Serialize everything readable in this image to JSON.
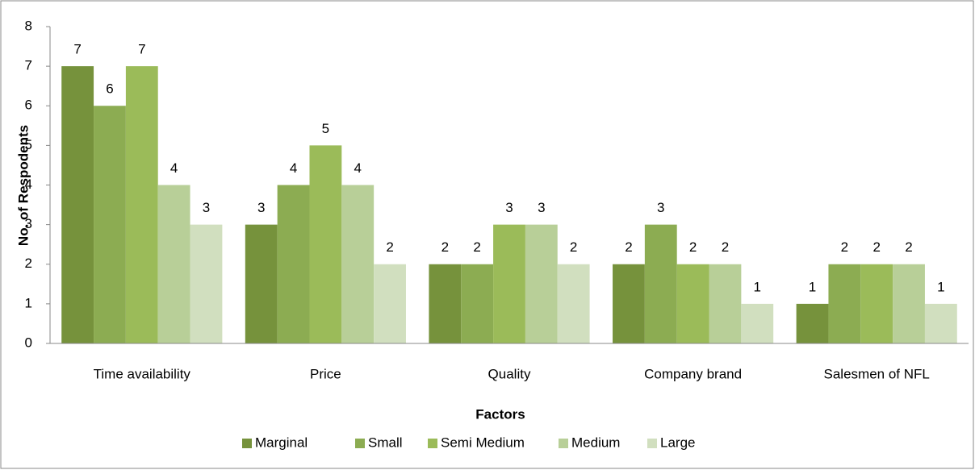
{
  "chart_data": {
    "type": "bar",
    "x_label": "Factors",
    "y_label": "No. of Respodents",
    "categories": [
      "Time availability",
      "Price",
      "Quality",
      "Company brand",
      "Salesmen of NFL"
    ],
    "series": [
      {
        "name": "Marginal",
        "color": "#76923c",
        "values": [
          7,
          3,
          2,
          2,
          1
        ]
      },
      {
        "name": "Small",
        "color": "#8cac52",
        "values": [
          6,
          4,
          2,
          3,
          2
        ]
      },
      {
        "name": "Semi Medium",
        "color": "#9bbb59",
        "values": [
          7,
          5,
          3,
          2,
          2
        ]
      },
      {
        "name": "Medium",
        "color": "#b8cf98",
        "values": [
          4,
          4,
          3,
          2,
          2
        ]
      },
      {
        "name": "Large",
        "color": "#d1dfbf",
        "values": [
          3,
          2,
          2,
          1,
          1
        ]
      }
    ],
    "ylim": [
      0,
      8
    ],
    "yticks": [
      0,
      1,
      2,
      3,
      4,
      5,
      6,
      7,
      8
    ],
    "legend": "bottom",
    "grid": false
  }
}
